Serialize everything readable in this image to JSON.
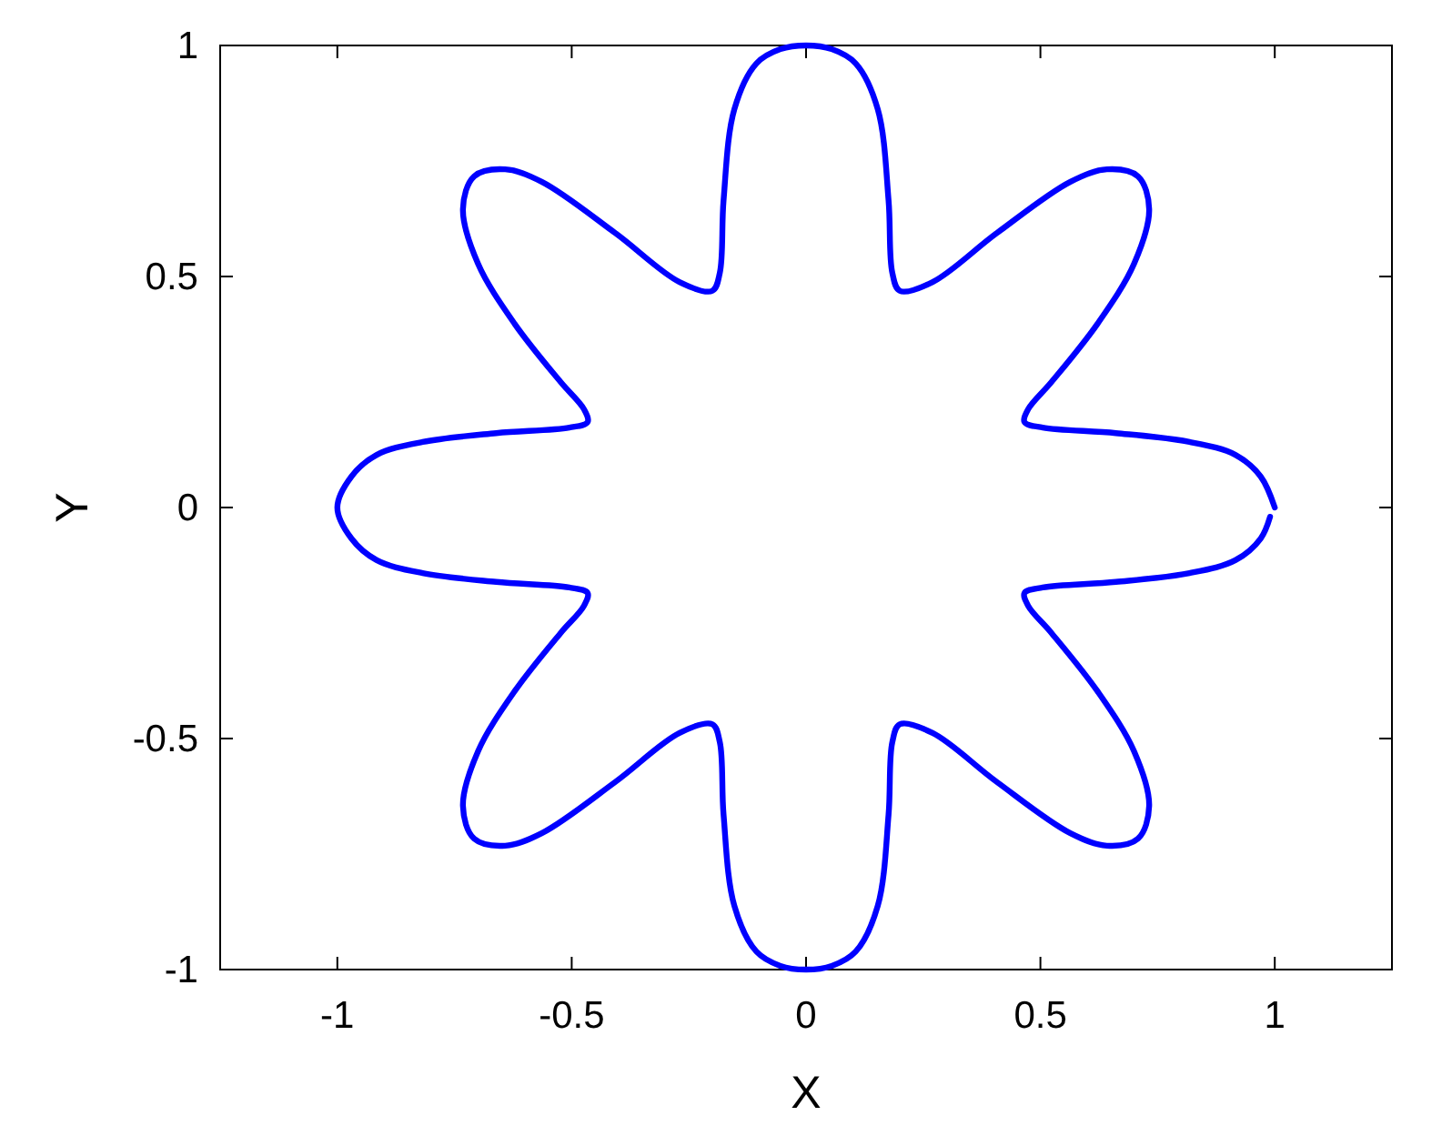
{
  "chart_data": {
    "type": "line",
    "xlabel": "X",
    "ylabel": "Y",
    "xlim": [
      -1.25,
      1.25
    ],
    "ylim": [
      -1,
      1
    ],
    "xticks": [
      -1,
      -0.5,
      0,
      0.5,
      1
    ],
    "yticks": [
      -1,
      -0.5,
      0,
      0.5,
      1
    ],
    "grid": false,
    "line_style": "solid",
    "marker": "none",
    "series": [
      {
        "color": "#0000ff",
        "x": [
          1,
          0.97,
          0.916,
          0.818,
          0.661,
          0.505,
          0.466,
          0.474,
          0.524,
          0.622,
          0.7,
          0.732,
          0.708,
          0.642,
          0.564,
          0.407,
          0.27,
          0.2,
          0.184,
          0.176,
          0.153,
          0.106,
          0.055,
          0,
          -0.055,
          -0.106,
          -0.153,
          -0.176,
          -0.184,
          -0.2,
          -0.27,
          -0.407,
          -0.564,
          -0.642,
          -0.708,
          -0.732,
          -0.7,
          -0.622,
          -0.524,
          -0.474,
          -0.466,
          -0.505,
          -0.661,
          -0.818,
          -0.916,
          -0.97,
          -1,
          -0.97,
          -0.916,
          -0.818,
          -0.661,
          -0.505,
          -0.466,
          -0.474,
          -0.524,
          -0.622,
          -0.7,
          -0.732,
          -0.708,
          -0.642,
          -0.564,
          -0.407,
          -0.27,
          -0.2,
          -0.184,
          -0.176,
          -0.153,
          -0.106,
          -0.055,
          0,
          0.055,
          0.106,
          0.153,
          0.176,
          0.184,
          0.2,
          0.27,
          0.407,
          0.564,
          0.642,
          0.708,
          0.732,
          0.7,
          0.622,
          0.524,
          0.474,
          0.466,
          0.505,
          0.661,
          0.818,
          0.916,
          0.97,
          0.99
        ],
        "values": [
          0,
          0.067,
          0.114,
          0.142,
          0.161,
          0.173,
          0.185,
          0.213,
          0.272,
          0.398,
          0.528,
          0.646,
          0.717,
          0.732,
          0.705,
          0.594,
          0.488,
          0.469,
          0.508,
          0.665,
          0.862,
          0.961,
          0.992,
          1,
          0.992,
          0.961,
          0.862,
          0.665,
          0.508,
          0.469,
          0.488,
          0.594,
          0.705,
          0.732,
          0.717,
          0.646,
          0.528,
          0.398,
          0.272,
          0.213,
          0.185,
          0.173,
          0.161,
          0.142,
          0.114,
          0.067,
          0,
          -0.067,
          -0.114,
          -0.142,
          -0.161,
          -0.173,
          -0.185,
          -0.213,
          -0.272,
          -0.398,
          -0.528,
          -0.646,
          -0.717,
          -0.732,
          -0.705,
          -0.594,
          -0.488,
          -0.469,
          -0.508,
          -0.665,
          -0.862,
          -0.961,
          -0.992,
          -1,
          -0.992,
          -0.961,
          -0.862,
          -0.665,
          -0.508,
          -0.469,
          -0.488,
          -0.594,
          -0.705,
          -0.732,
          -0.717,
          -0.646,
          -0.528,
          -0.398,
          -0.272,
          -0.213,
          -0.185,
          -0.173,
          -0.161,
          -0.142,
          -0.114,
          -0.067,
          -0.02
        ]
      }
    ]
  }
}
